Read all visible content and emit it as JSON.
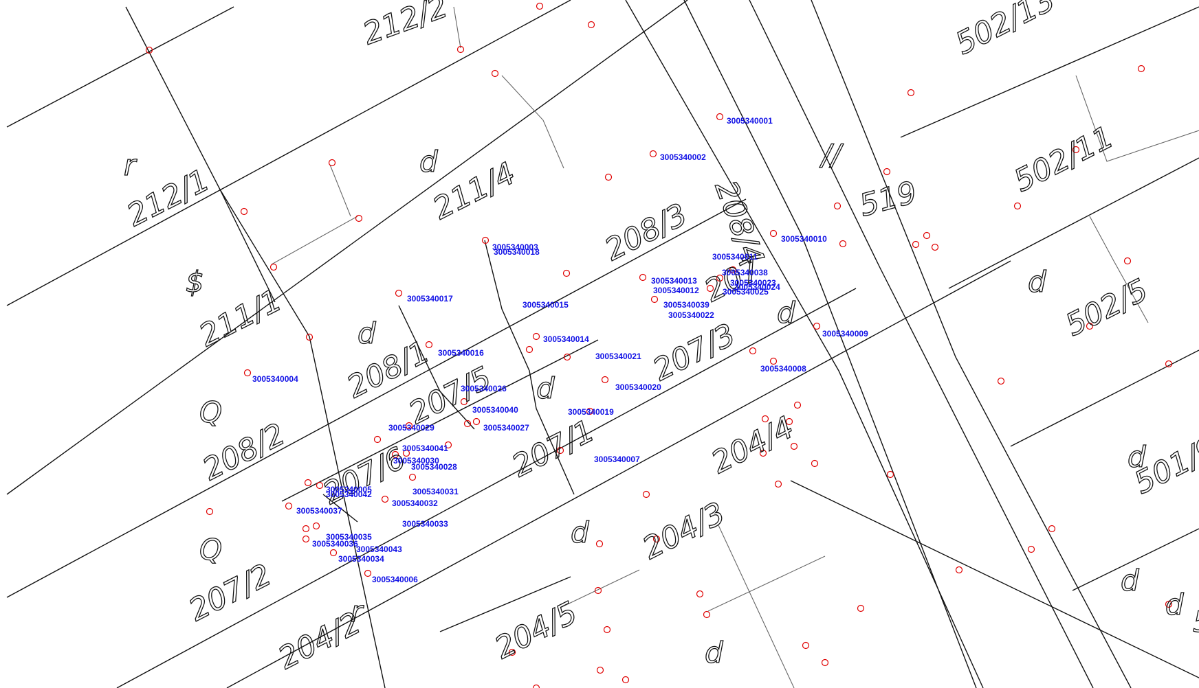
{
  "parcel_labels": [
    "212/2",
    "212/1",
    "211/4",
    "211/1",
    "208/3",
    "208/1",
    "208/2",
    "207/5",
    "207/3",
    "207/2",
    "207/1",
    "207/6",
    "208/4",
    "204/4",
    "204/3",
    "204/2",
    "204/5",
    "519",
    "502/13",
    "502/11",
    "502/5",
    "501/9",
    "207"
  ],
  "land_use_symbols": [
    "r",
    "d",
    "$",
    "d",
    "Q",
    "d",
    "Q",
    "d",
    "d",
    "d",
    "r",
    "d",
    "d",
    "//",
    "d",
    "d",
    "d",
    "5"
  ],
  "point_ids": [
    "3005340001",
    "3005340002",
    "3005340003",
    "3005340018",
    "3005340017",
    "3005340015",
    "3005340016",
    "3005340014",
    "3005340004",
    "3005340011",
    "3005340010",
    "3005340038",
    "3005340013",
    "3005340012",
    "3005340023",
    "3005340024",
    "3005340025",
    "3005340039",
    "3005340022",
    "3005340009",
    "3005340021",
    "3005340008",
    "3005340020",
    "3005340026",
    "3005340040",
    "3005340019",
    "3005340029",
    "3005340027",
    "3005340041",
    "3005340030",
    "3005340028",
    "3005340007",
    "3005340005",
    "3005340042",
    "3005340031",
    "3005340032",
    "3005340037",
    "3005340033",
    "3005340035",
    "3005340036",
    "3005340043",
    "3005340034",
    "3005340006"
  ],
  "colors": {
    "background": "#ffffff",
    "boundary": "#111111",
    "building": "#666666",
    "vertex": "#e00000",
    "point_id": "#1010e6"
  }
}
